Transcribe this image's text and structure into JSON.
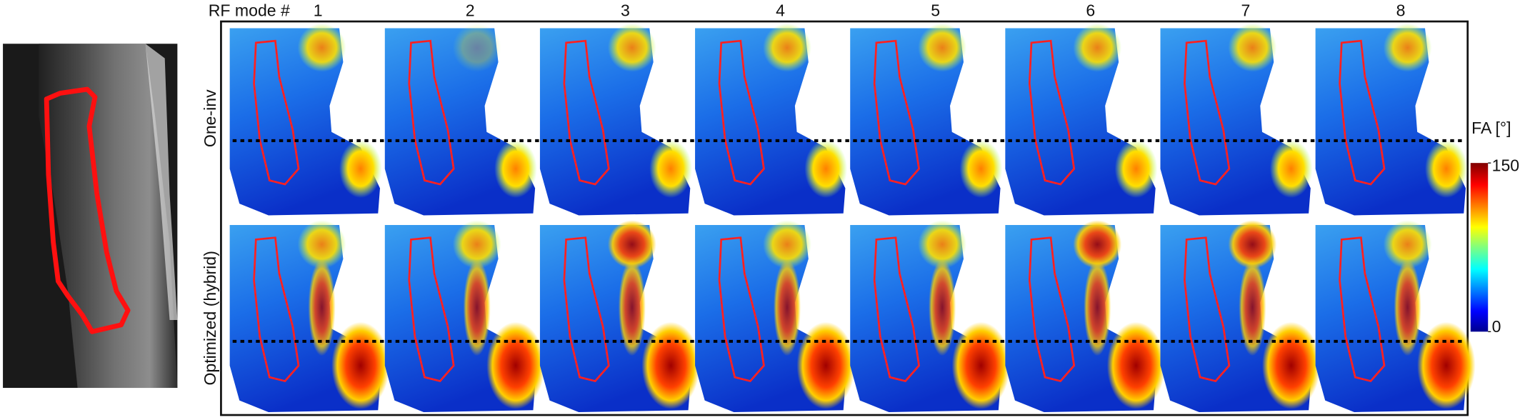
{
  "header": {
    "prefix": "RF mode #",
    "modes": [
      "1",
      "2",
      "3",
      "4",
      "5",
      "6",
      "7",
      "8"
    ]
  },
  "rows": [
    "One-inv",
    "Optimized (hybrid)"
  ],
  "colorbar": {
    "label": "FA [°]",
    "ylim": [
      0,
      150
    ],
    "yticks": [
      0,
      150
    ]
  }
}
